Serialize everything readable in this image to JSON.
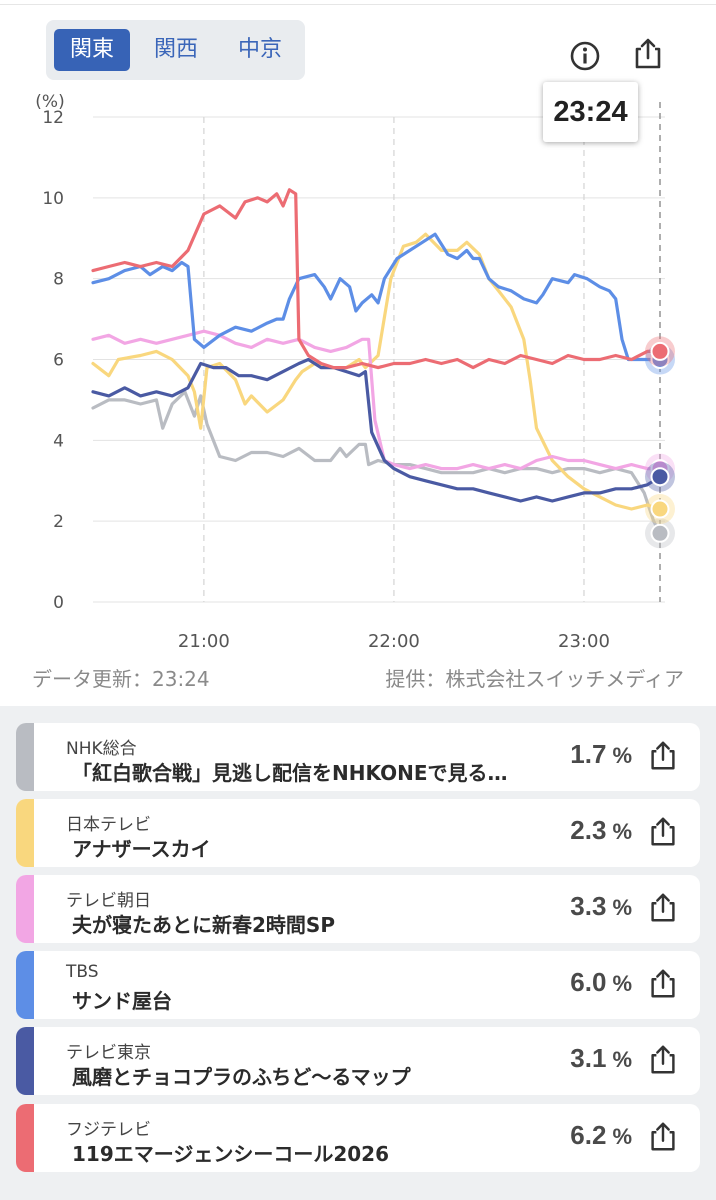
{
  "regions": [
    {
      "label": "関東",
      "active": true
    },
    {
      "label": "関西",
      "active": false
    },
    {
      "label": "中京",
      "active": false
    }
  ],
  "current_time": "23:24",
  "chart_data": {
    "type": "line",
    "ylabel": "(%)",
    "ylim": [
      0,
      12
    ],
    "yticks": [
      "0",
      "2",
      "4",
      "6",
      "8",
      "10",
      "12"
    ],
    "xticks": [
      "21:00",
      "22:00",
      "23:00"
    ],
    "x_range": [
      "20:25",
      "23:24"
    ],
    "grid": true,
    "series": [
      {
        "name": "NHK総合",
        "color": "#b9bcc2",
        "end_value": 1.7,
        "points": [
          [
            0,
            4.8
          ],
          [
            5,
            5.0
          ],
          [
            10,
            5.0
          ],
          [
            15,
            4.9
          ],
          [
            20,
            5.0
          ],
          [
            22,
            4.3
          ],
          [
            25,
            4.9
          ],
          [
            29,
            5.2
          ],
          [
            32,
            4.6
          ],
          [
            34,
            5.1
          ],
          [
            36,
            4.4
          ],
          [
            40,
            3.6
          ],
          [
            45,
            3.5
          ],
          [
            50,
            3.7
          ],
          [
            55,
            3.7
          ],
          [
            60,
            3.6
          ],
          [
            65,
            3.8
          ],
          [
            70,
            3.5
          ],
          [
            75,
            3.5
          ],
          [
            78,
            3.8
          ],
          [
            80,
            3.6
          ],
          [
            84,
            3.9
          ],
          [
            86,
            3.9
          ],
          [
            87,
            3.4
          ],
          [
            90,
            3.5
          ],
          [
            95,
            3.4
          ],
          [
            100,
            3.4
          ],
          [
            105,
            3.3
          ],
          [
            110,
            3.2
          ],
          [
            115,
            3.2
          ],
          [
            120,
            3.2
          ],
          [
            125,
            3.3
          ],
          [
            130,
            3.2
          ],
          [
            135,
            3.3
          ],
          [
            140,
            3.3
          ],
          [
            145,
            3.2
          ],
          [
            150,
            3.3
          ],
          [
            155,
            3.3
          ],
          [
            160,
            3.2
          ],
          [
            165,
            3.3
          ],
          [
            170,
            3.2
          ],
          [
            174,
            2.7
          ],
          [
            177,
            2.0
          ],
          [
            179,
            1.7
          ]
        ]
      },
      {
        "name": "日本テレビ",
        "color": "#f9d77e",
        "end_value": 2.3,
        "points": [
          [
            0,
            5.9
          ],
          [
            5,
            5.6
          ],
          [
            8,
            6.0
          ],
          [
            15,
            6.1
          ],
          [
            20,
            6.2
          ],
          [
            25,
            6.0
          ],
          [
            30,
            5.6
          ],
          [
            32,
            5.2
          ],
          [
            34,
            4.3
          ],
          [
            36,
            5.8
          ],
          [
            40,
            5.9
          ],
          [
            45,
            5.5
          ],
          [
            48,
            4.9
          ],
          [
            50,
            5.1
          ],
          [
            55,
            4.7
          ],
          [
            60,
            5.0
          ],
          [
            64,
            5.5
          ],
          [
            66,
            5.7
          ],
          [
            70,
            5.9
          ],
          [
            75,
            5.8
          ],
          [
            80,
            5.8
          ],
          [
            84,
            6.0
          ],
          [
            86,
            5.8
          ],
          [
            90,
            6.1
          ],
          [
            94,
            8.0
          ],
          [
            98,
            8.8
          ],
          [
            102,
            8.9
          ],
          [
            105,
            9.1
          ],
          [
            110,
            8.7
          ],
          [
            115,
            8.7
          ],
          [
            118,
            8.9
          ],
          [
            122,
            8.6
          ],
          [
            125,
            8.0
          ],
          [
            128,
            7.7
          ],
          [
            132,
            7.3
          ],
          [
            136,
            6.5
          ],
          [
            138,
            5.5
          ],
          [
            140,
            4.3
          ],
          [
            145,
            3.5
          ],
          [
            150,
            3.1
          ],
          [
            155,
            2.8
          ],
          [
            160,
            2.6
          ],
          [
            165,
            2.4
          ],
          [
            170,
            2.3
          ],
          [
            175,
            2.4
          ],
          [
            179,
            2.3
          ]
        ]
      },
      {
        "name": "テレビ朝日",
        "color": "#f2a6e4",
        "end_value": 3.3,
        "points": [
          [
            0,
            6.5
          ],
          [
            5,
            6.6
          ],
          [
            10,
            6.4
          ],
          [
            15,
            6.5
          ],
          [
            20,
            6.4
          ],
          [
            25,
            6.5
          ],
          [
            30,
            6.6
          ],
          [
            35,
            6.7
          ],
          [
            40,
            6.6
          ],
          [
            45,
            6.4
          ],
          [
            50,
            6.3
          ],
          [
            55,
            6.5
          ],
          [
            60,
            6.4
          ],
          [
            65,
            6.5
          ],
          [
            70,
            6.3
          ],
          [
            75,
            6.2
          ],
          [
            80,
            6.3
          ],
          [
            85,
            6.5
          ],
          [
            87,
            6.5
          ],
          [
            89,
            4.5
          ],
          [
            92,
            3.5
          ],
          [
            95,
            3.4
          ],
          [
            100,
            3.3
          ],
          [
            105,
            3.4
          ],
          [
            110,
            3.3
          ],
          [
            115,
            3.3
          ],
          [
            120,
            3.4
          ],
          [
            125,
            3.3
          ],
          [
            130,
            3.4
          ],
          [
            135,
            3.3
          ],
          [
            140,
            3.5
          ],
          [
            145,
            3.6
          ],
          [
            150,
            3.5
          ],
          [
            155,
            3.5
          ],
          [
            160,
            3.4
          ],
          [
            165,
            3.3
          ],
          [
            170,
            3.4
          ],
          [
            175,
            3.3
          ],
          [
            179,
            3.3
          ]
        ]
      },
      {
        "name": "TBS",
        "color": "#5d8ee6",
        "end_value": 6.0,
        "points": [
          [
            0,
            7.9
          ],
          [
            5,
            8.0
          ],
          [
            10,
            8.2
          ],
          [
            15,
            8.3
          ],
          [
            18,
            8.1
          ],
          [
            22,
            8.3
          ],
          [
            25,
            8.2
          ],
          [
            28,
            8.4
          ],
          [
            30,
            8.3
          ],
          [
            32,
            6.5
          ],
          [
            35,
            6.3
          ],
          [
            40,
            6.6
          ],
          [
            45,
            6.8
          ],
          [
            50,
            6.7
          ],
          [
            55,
            6.9
          ],
          [
            58,
            7.0
          ],
          [
            60,
            7.0
          ],
          [
            62,
            7.5
          ],
          [
            65,
            8.0
          ],
          [
            70,
            8.1
          ],
          [
            73,
            7.8
          ],
          [
            75,
            7.5
          ],
          [
            78,
            8.0
          ],
          [
            81,
            7.8
          ],
          [
            83,
            7.2
          ],
          [
            85,
            7.4
          ],
          [
            88,
            7.6
          ],
          [
            90,
            7.4
          ],
          [
            92,
            8.0
          ],
          [
            96,
            8.5
          ],
          [
            100,
            8.7
          ],
          [
            104,
            8.9
          ],
          [
            108,
            9.1
          ],
          [
            112,
            8.6
          ],
          [
            115,
            8.5
          ],
          [
            118,
            8.7
          ],
          [
            120,
            8.5
          ],
          [
            122,
            8.5
          ],
          [
            125,
            8.0
          ],
          [
            128,
            7.8
          ],
          [
            132,
            7.7
          ],
          [
            136,
            7.5
          ],
          [
            140,
            7.4
          ],
          [
            142,
            7.6
          ],
          [
            145,
            8.0
          ],
          [
            150,
            7.9
          ],
          [
            152,
            8.1
          ],
          [
            156,
            8.0
          ],
          [
            160,
            7.8
          ],
          [
            163,
            7.7
          ],
          [
            165,
            7.5
          ],
          [
            167,
            6.5
          ],
          [
            169,
            6.0
          ],
          [
            175,
            6.0
          ],
          [
            179,
            6.0
          ]
        ]
      },
      {
        "name": "テレビ東京",
        "color": "#4a5aa3",
        "end_value": 3.1,
        "points": [
          [
            0,
            5.2
          ],
          [
            5,
            5.1
          ],
          [
            10,
            5.3
          ],
          [
            15,
            5.1
          ],
          [
            20,
            5.2
          ],
          [
            25,
            5.1
          ],
          [
            30,
            5.3
          ],
          [
            34,
            5.9
          ],
          [
            38,
            5.8
          ],
          [
            42,
            5.8
          ],
          [
            46,
            5.6
          ],
          [
            50,
            5.6
          ],
          [
            55,
            5.5
          ],
          [
            60,
            5.7
          ],
          [
            65,
            5.9
          ],
          [
            68,
            6.0
          ],
          [
            72,
            5.8
          ],
          [
            76,
            5.8
          ],
          [
            80,
            5.7
          ],
          [
            84,
            5.6
          ],
          [
            86,
            5.7
          ],
          [
            88,
            4.2
          ],
          [
            92,
            3.5
          ],
          [
            95,
            3.3
          ],
          [
            100,
            3.1
          ],
          [
            105,
            3.0
          ],
          [
            110,
            2.9
          ],
          [
            115,
            2.8
          ],
          [
            120,
            2.8
          ],
          [
            125,
            2.7
          ],
          [
            130,
            2.6
          ],
          [
            135,
            2.5
          ],
          [
            140,
            2.6
          ],
          [
            145,
            2.5
          ],
          [
            150,
            2.6
          ],
          [
            155,
            2.7
          ],
          [
            160,
            2.7
          ],
          [
            165,
            2.8
          ],
          [
            170,
            2.8
          ],
          [
            175,
            2.9
          ],
          [
            179,
            3.1
          ]
        ]
      },
      {
        "name": "フジテレビ",
        "color": "#ec6c73",
        "end_value": 6.2,
        "points": [
          [
            0,
            8.2
          ],
          [
            5,
            8.3
          ],
          [
            10,
            8.4
          ],
          [
            15,
            8.3
          ],
          [
            20,
            8.4
          ],
          [
            25,
            8.3
          ],
          [
            30,
            8.7
          ],
          [
            35,
            9.6
          ],
          [
            40,
            9.8
          ],
          [
            45,
            9.5
          ],
          [
            48,
            9.9
          ],
          [
            52,
            10.0
          ],
          [
            55,
            9.9
          ],
          [
            58,
            10.1
          ],
          [
            60,
            9.8
          ],
          [
            62,
            10.2
          ],
          [
            64,
            10.1
          ],
          [
            65,
            6.5
          ],
          [
            68,
            6.1
          ],
          [
            72,
            5.9
          ],
          [
            76,
            5.8
          ],
          [
            80,
            5.8
          ],
          [
            85,
            5.9
          ],
          [
            90,
            5.8
          ],
          [
            95,
            5.9
          ],
          [
            100,
            5.9
          ],
          [
            105,
            6.0
          ],
          [
            110,
            5.9
          ],
          [
            115,
            6.0
          ],
          [
            120,
            5.8
          ],
          [
            125,
            6.0
          ],
          [
            130,
            5.9
          ],
          [
            135,
            6.1
          ],
          [
            140,
            6.0
          ],
          [
            145,
            5.9
          ],
          [
            150,
            6.1
          ],
          [
            155,
            6.0
          ],
          [
            160,
            6.0
          ],
          [
            165,
            6.1
          ],
          [
            170,
            6.0
          ],
          [
            175,
            6.2
          ],
          [
            179,
            6.2
          ]
        ]
      }
    ]
  },
  "footer": {
    "updated": "データ更新：23:24",
    "source": "提供：株式会社スイッチメディア"
  },
  "programs": [
    {
      "network": "NHK総合",
      "title": "「紅白歌合戦」見逃し配信をNHKONEで見る…",
      "rating": "1.7",
      "unit": "%",
      "color": "#b9bcc2"
    },
    {
      "network": "日本テレビ",
      "title": "アナザースカイ",
      "rating": "2.3",
      "unit": "%",
      "color": "#f9d77e"
    },
    {
      "network": "テレビ朝日",
      "title": "夫が寝たあとに新春2時間SP",
      "rating": "3.3",
      "unit": "%",
      "color": "#f2a6e4"
    },
    {
      "network": "TBS",
      "title": "サンド屋台",
      "rating": "6.0",
      "unit": "%",
      "color": "#5d8ee6"
    },
    {
      "network": "テレビ東京",
      "title": "風磨とチョコプラのふちど～るマップ",
      "rating": "3.1",
      "unit": "%",
      "color": "#4a5aa3"
    },
    {
      "network": "フジテレビ",
      "title": "119エマージェンシーコール2026",
      "rating": "6.2",
      "unit": "%",
      "color": "#ec6c73"
    }
  ],
  "icons": {
    "info": "info-icon",
    "share": "share-icon"
  }
}
